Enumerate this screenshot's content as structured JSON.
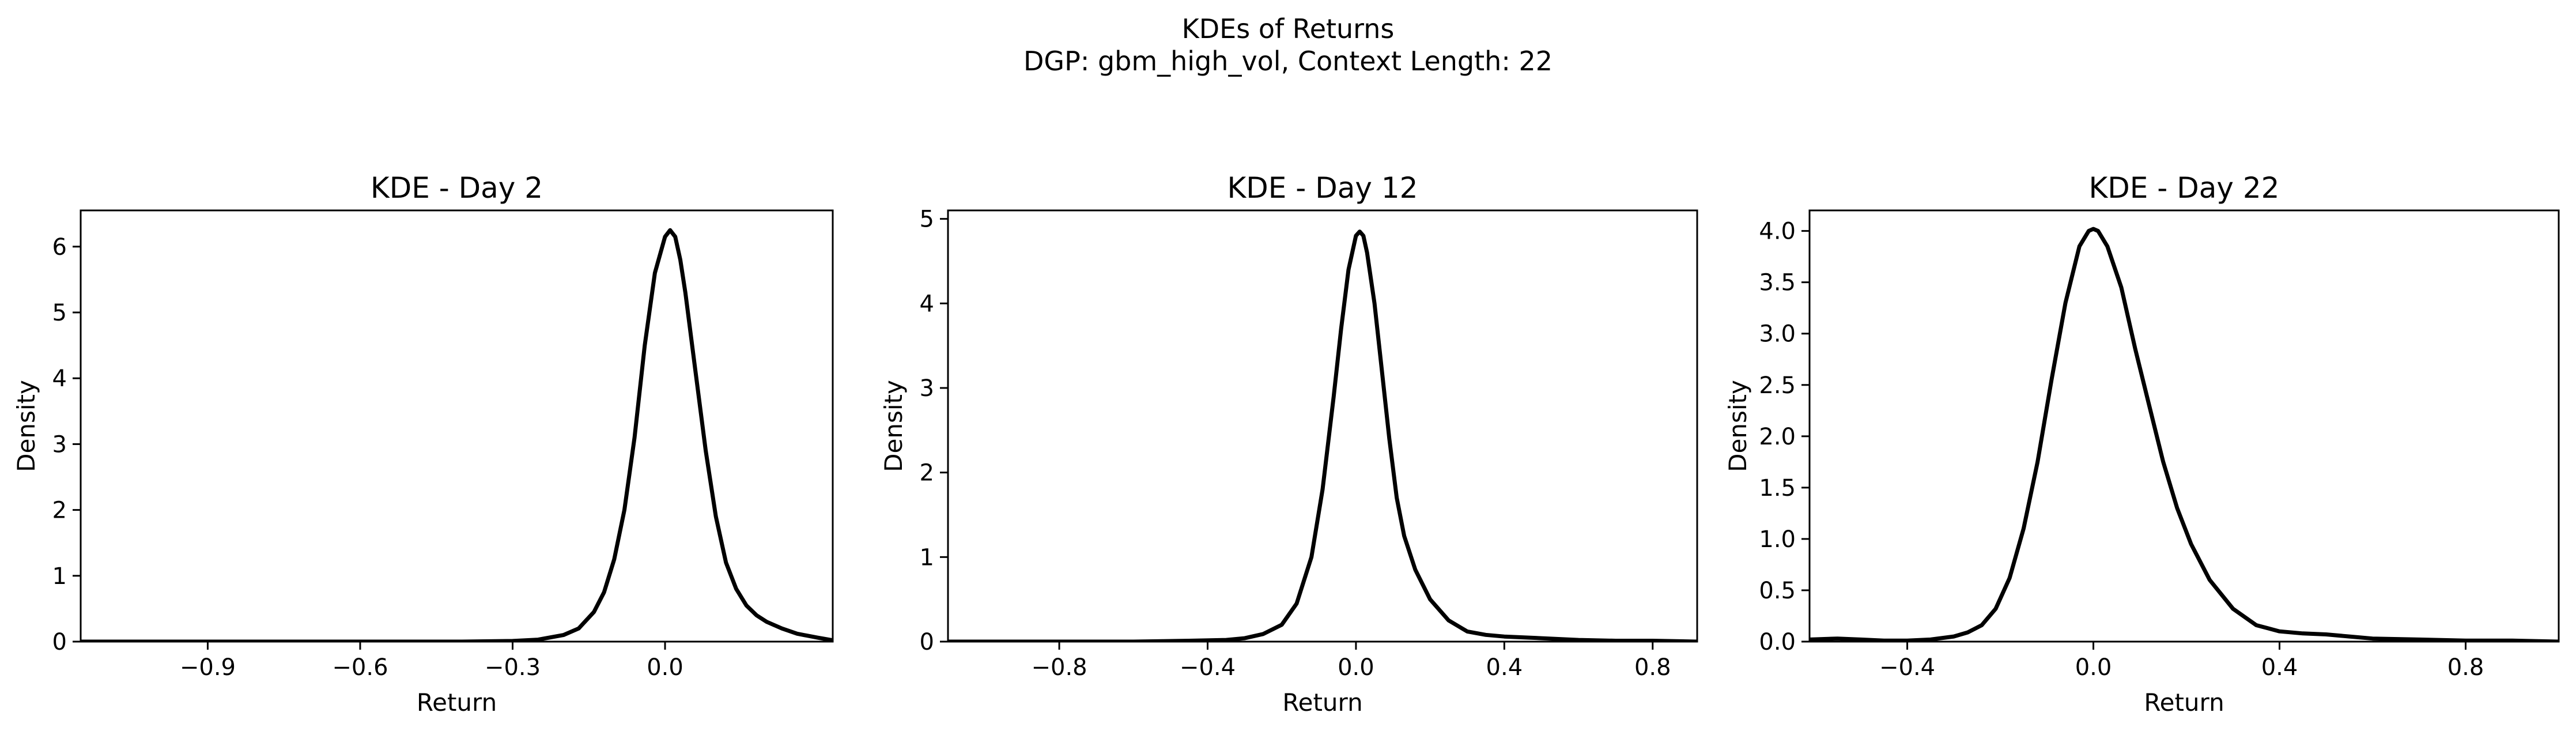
{
  "figure": {
    "title_line1": "KDEs of Returns",
    "title_line2": "DGP: gbm_high_vol, Context Length: 22"
  },
  "chart_data": [
    {
      "type": "line",
      "title": "KDE - Day 2",
      "xlabel": "Return",
      "ylabel": "Density",
      "xlim": [
        -1.15,
        0.33
      ],
      "ylim": [
        0,
        6.55
      ],
      "xticks": [
        -0.9,
        -0.6,
        -0.3,
        0.0
      ],
      "xtick_labels": [
        "−0.9",
        "−0.6",
        "−0.3",
        "0.0"
      ],
      "yticks": [
        0,
        1,
        2,
        3,
        4,
        5,
        6
      ],
      "ytick_labels": [
        "0",
        "1",
        "2",
        "3",
        "4",
        "5",
        "6"
      ],
      "grid": false,
      "line_color": "#000000",
      "series": [
        {
          "x": [
            -1.15,
            -0.9,
            -0.6,
            -0.4,
            -0.3,
            -0.25,
            -0.2,
            -0.17,
            -0.14,
            -0.12,
            -0.1,
            -0.08,
            -0.06,
            -0.04,
            -0.02,
            0.0,
            0.01,
            0.02,
            0.03,
            0.04,
            0.06,
            0.08,
            0.1,
            0.12,
            0.14,
            0.16,
            0.18,
            0.2,
            0.23,
            0.26,
            0.3,
            0.33
          ],
          "y": [
            0.0,
            0.0,
            0.0,
            0.0,
            0.01,
            0.03,
            0.1,
            0.2,
            0.45,
            0.75,
            1.25,
            2.0,
            3.1,
            4.5,
            5.6,
            6.15,
            6.25,
            6.15,
            5.8,
            5.3,
            4.1,
            2.9,
            1.9,
            1.2,
            0.8,
            0.55,
            0.4,
            0.3,
            0.2,
            0.12,
            0.06,
            0.02
          ]
        }
      ]
    },
    {
      "type": "line",
      "title": "KDE - Day 12",
      "xlabel": "Return",
      "ylabel": "Density",
      "xlim": [
        -1.1,
        0.92
      ],
      "ylim": [
        0,
        5.1
      ],
      "xticks": [
        -0.8,
        -0.4,
        0.0,
        0.4,
        0.8
      ],
      "xtick_labels": [
        "−0.8",
        "−0.4",
        "0.0",
        "0.4",
        "0.8"
      ],
      "yticks": [
        0,
        1,
        2,
        3,
        4,
        5
      ],
      "ytick_labels": [
        "0",
        "1",
        "2",
        "3",
        "4",
        "5"
      ],
      "grid": false,
      "line_color": "#000000",
      "series": [
        {
          "x": [
            -1.1,
            -0.8,
            -0.6,
            -0.45,
            -0.35,
            -0.3,
            -0.25,
            -0.2,
            -0.16,
            -0.12,
            -0.09,
            -0.06,
            -0.04,
            -0.02,
            0.0,
            0.01,
            0.02,
            0.03,
            0.05,
            0.07,
            0.09,
            0.11,
            0.13,
            0.16,
            0.2,
            0.25,
            0.3,
            0.35,
            0.4,
            0.5,
            0.6,
            0.7,
            0.8,
            0.92
          ],
          "y": [
            0.0,
            0.0,
            0.0,
            0.01,
            0.02,
            0.04,
            0.09,
            0.2,
            0.45,
            1.0,
            1.8,
            2.9,
            3.7,
            4.4,
            4.8,
            4.85,
            4.8,
            4.6,
            4.0,
            3.2,
            2.4,
            1.7,
            1.25,
            0.85,
            0.5,
            0.25,
            0.12,
            0.08,
            0.06,
            0.04,
            0.02,
            0.01,
            0.01,
            0.0
          ]
        }
      ]
    },
    {
      "type": "line",
      "title": "KDE - Day 22",
      "xlabel": "Return",
      "ylabel": "Density",
      "xlim": [
        -0.61,
        1.0
      ],
      "ylim": [
        0,
        4.2
      ],
      "xticks": [
        -0.4,
        0.0,
        0.4,
        0.8
      ],
      "xtick_labels": [
        "−0.4",
        "0.0",
        "0.4",
        "0.8"
      ],
      "yticks": [
        0.0,
        0.5,
        1.0,
        1.5,
        2.0,
        2.5,
        3.0,
        3.5,
        4.0
      ],
      "ytick_labels": [
        "0.0",
        "0.5",
        "1.0",
        "1.5",
        "2.0",
        "2.5",
        "3.0",
        "3.5",
        "4.0"
      ],
      "grid": false,
      "line_color": "#000000",
      "series": [
        {
          "x": [
            -0.61,
            -0.55,
            -0.5,
            -0.45,
            -0.4,
            -0.35,
            -0.3,
            -0.27,
            -0.24,
            -0.21,
            -0.18,
            -0.15,
            -0.12,
            -0.09,
            -0.06,
            -0.03,
            -0.01,
            0.0,
            0.01,
            0.03,
            0.06,
            0.09,
            0.12,
            0.15,
            0.18,
            0.21,
            0.25,
            0.3,
            0.35,
            0.4,
            0.45,
            0.5,
            0.55,
            0.6,
            0.7,
            0.8,
            0.9,
            1.0
          ],
          "y": [
            0.02,
            0.03,
            0.02,
            0.01,
            0.01,
            0.02,
            0.05,
            0.09,
            0.16,
            0.32,
            0.62,
            1.1,
            1.75,
            2.55,
            3.3,
            3.85,
            4.0,
            4.02,
            4.0,
            3.85,
            3.45,
            2.85,
            2.3,
            1.75,
            1.3,
            0.95,
            0.6,
            0.32,
            0.16,
            0.1,
            0.08,
            0.07,
            0.05,
            0.03,
            0.02,
            0.01,
            0.01,
            0.0
          ]
        }
      ]
    }
  ]
}
